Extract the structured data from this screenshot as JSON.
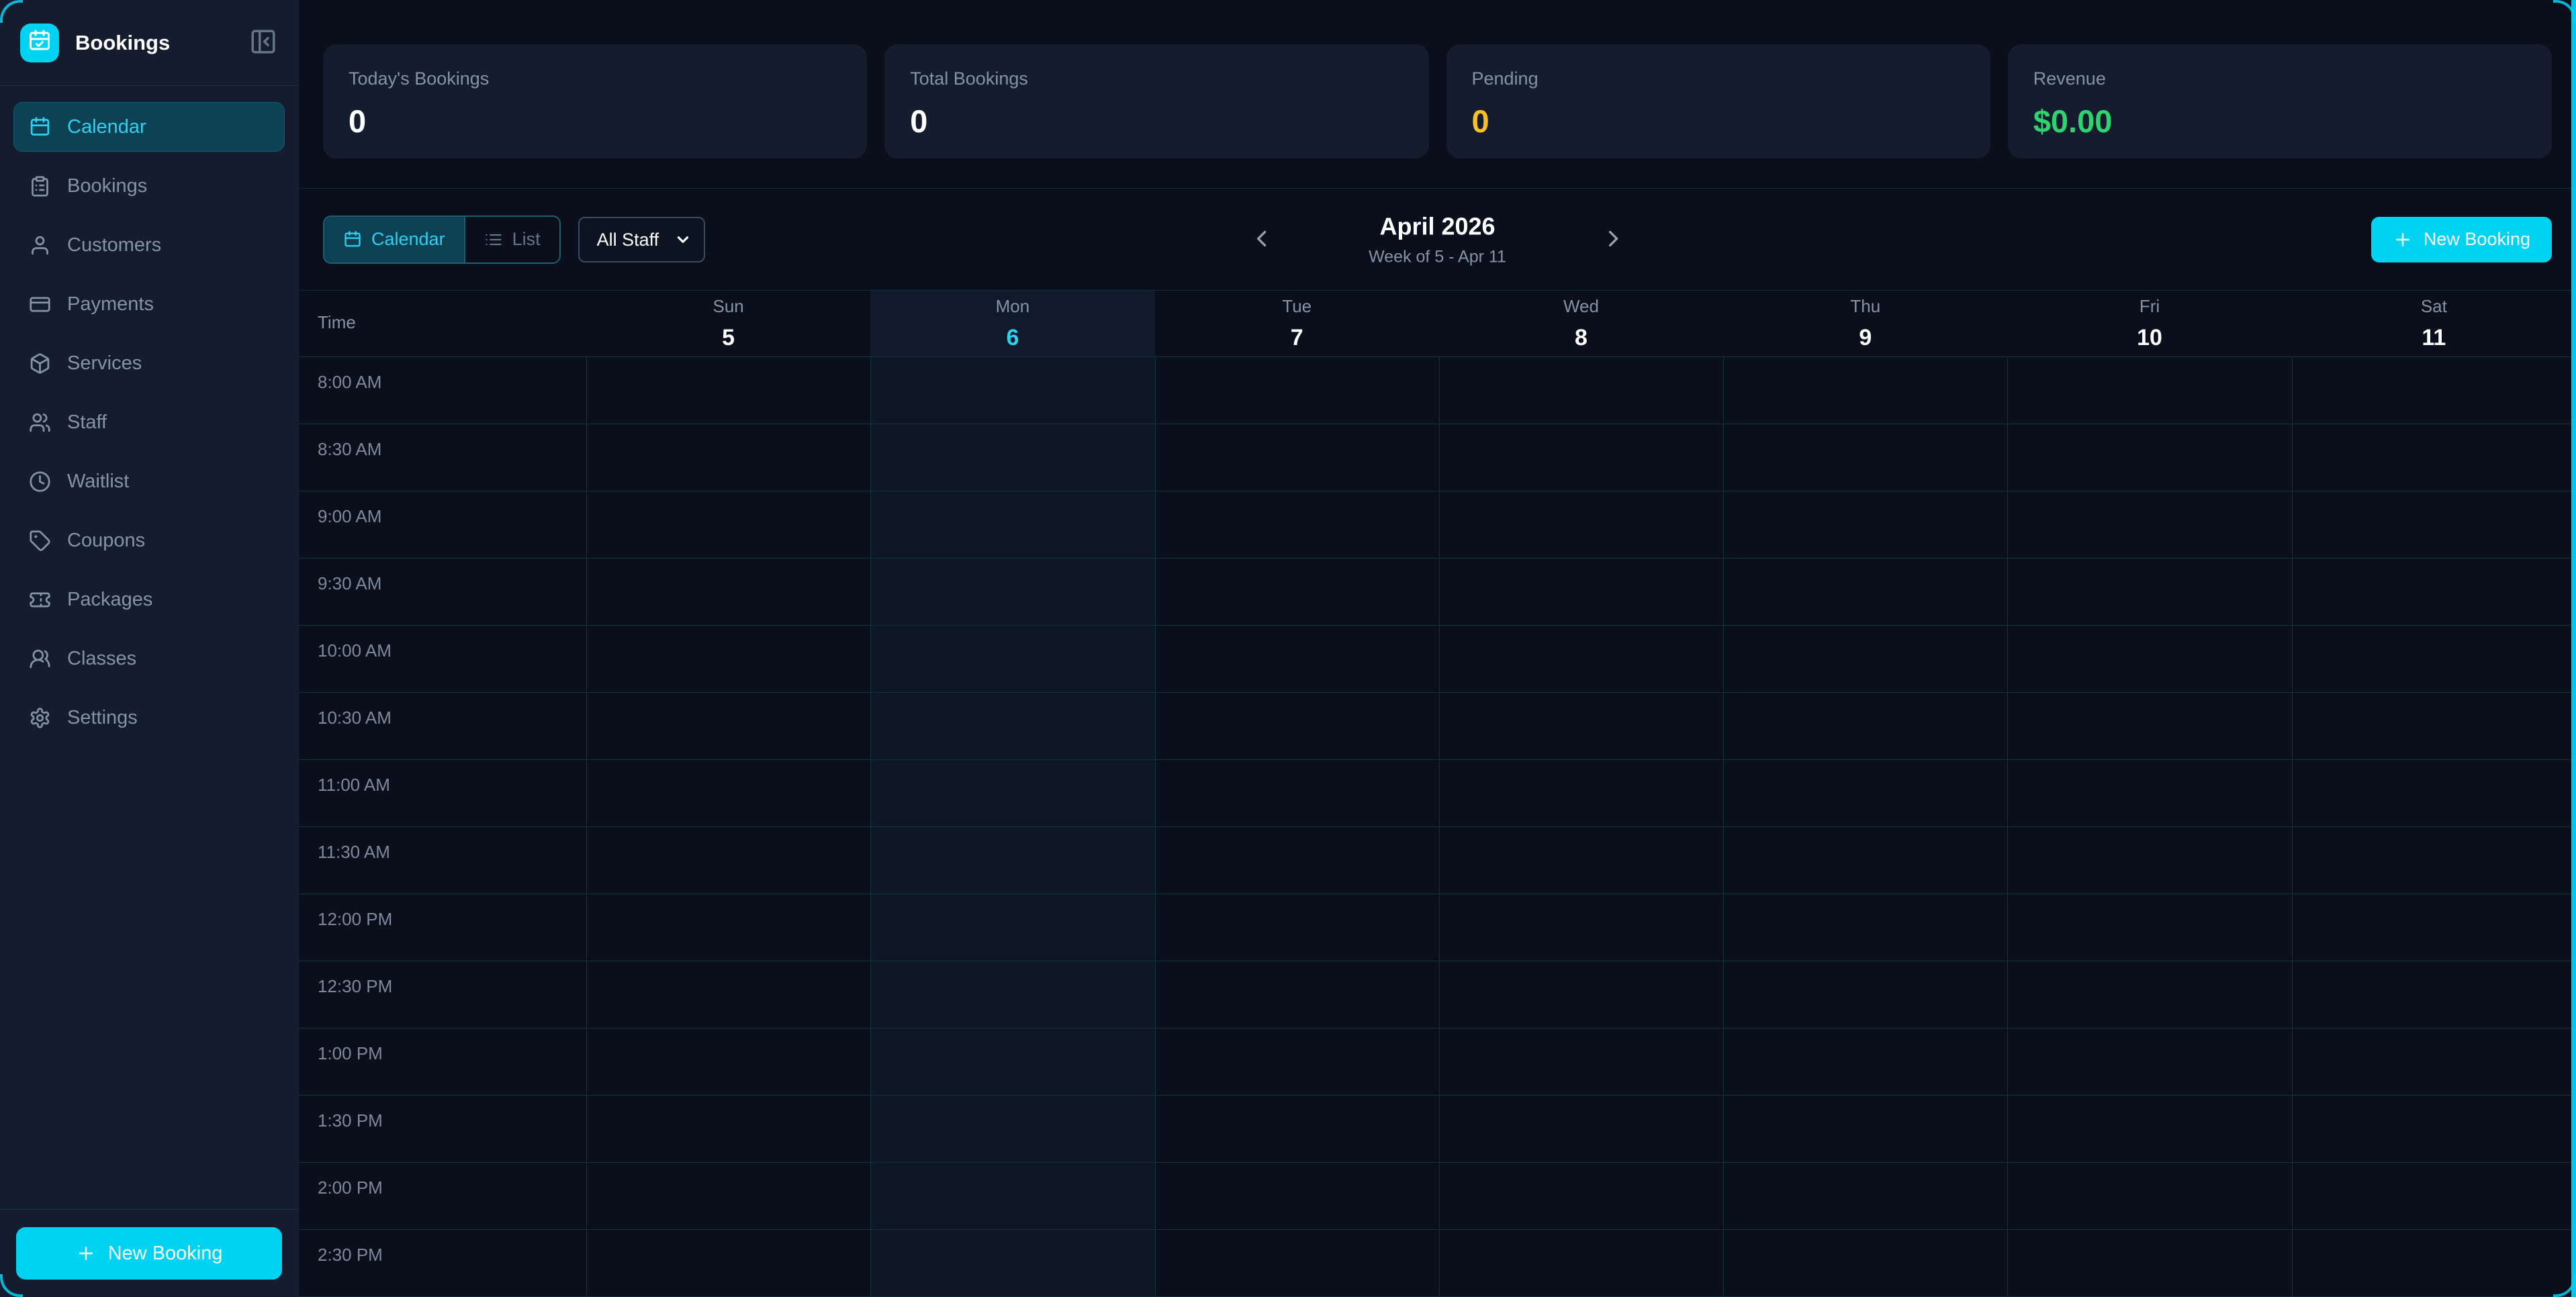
{
  "accent_color": "#00d3f2",
  "sidebar": {
    "logo_icon": "calendar-check",
    "title": "Bookings",
    "collapse_icon": "panel-left-close",
    "items": [
      {
        "label": "Calendar",
        "icon": "calendar",
        "active": true
      },
      {
        "label": "Bookings",
        "icon": "clipboard-list",
        "active": false
      },
      {
        "label": "Customers",
        "icon": "user",
        "active": false
      },
      {
        "label": "Payments",
        "icon": "credit-card",
        "active": false
      },
      {
        "label": "Services",
        "icon": "package",
        "active": false
      },
      {
        "label": "Staff",
        "icon": "users",
        "active": false
      },
      {
        "label": "Waitlist",
        "icon": "clock",
        "active": false
      },
      {
        "label": "Coupons",
        "icon": "tag",
        "active": false
      },
      {
        "label": "Packages",
        "icon": "ticket",
        "active": false
      },
      {
        "label": "Classes",
        "icon": "users-round",
        "active": false
      },
      {
        "label": "Settings",
        "icon": "gear",
        "active": false
      }
    ],
    "new_booking_label": "New Booking"
  },
  "stats": {
    "cards": [
      {
        "label": "Today's Bookings",
        "value": "0",
        "value_color": "#ffffff"
      },
      {
        "label": "Total Bookings",
        "value": "0",
        "value_color": "#ffffff"
      },
      {
        "label": "Pending",
        "value": "0",
        "value_color": "#fbbf24"
      },
      {
        "label": "Revenue",
        "value": "$0.00",
        "value_color": "#2dd36f"
      }
    ]
  },
  "toolbar": {
    "view_toggle": [
      {
        "label": "Calendar",
        "icon": "calendar",
        "active": true
      },
      {
        "label": "List",
        "icon": "list",
        "active": false
      }
    ],
    "staff_filter": {
      "value": "All Staff"
    },
    "period": {
      "title": "April 2026",
      "subtitle": "Week of 5 - Apr 11"
    },
    "new_booking_label": "New Booking"
  },
  "calendar": {
    "time_header": "Time",
    "days": [
      {
        "name": "Sun",
        "date": "5",
        "today": false
      },
      {
        "name": "Mon",
        "date": "6",
        "today": true
      },
      {
        "name": "Tue",
        "date": "7",
        "today": false
      },
      {
        "name": "Wed",
        "date": "8",
        "today": false
      },
      {
        "name": "Thu",
        "date": "9",
        "today": false
      },
      {
        "name": "Fri",
        "date": "10",
        "today": false
      },
      {
        "name": "Sat",
        "date": "11",
        "today": false
      }
    ],
    "time_slots": [
      "8:00 AM",
      "8:30 AM",
      "9:00 AM",
      "9:30 AM",
      "10:00 AM",
      "10:30 AM",
      "11:00 AM",
      "11:30 AM",
      "12:00 PM",
      "12:30 PM",
      "1:00 PM",
      "1:30 PM",
      "2:00 PM",
      "2:30 PM"
    ]
  }
}
